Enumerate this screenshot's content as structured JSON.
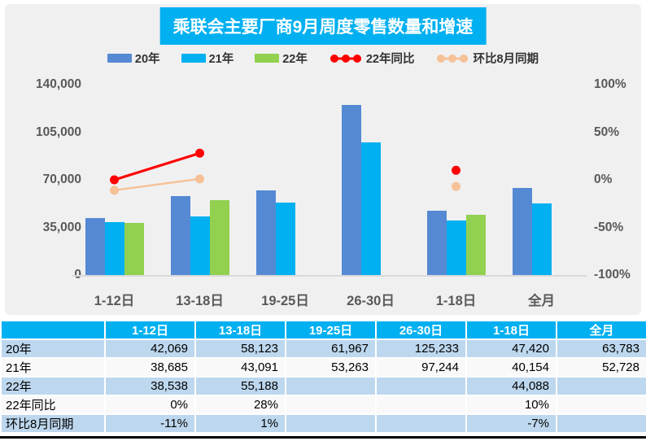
{
  "chart": {
    "title": "乘联会主要厂商9月周度零售数量和增速"
  },
  "chart_data": {
    "type": "bar",
    "subtype": "clustered bars with percent line overlay (combo)",
    "title": "乘联会主要厂商9月周度零售数量和增速",
    "categories": [
      "1-12日",
      "13-18日",
      "19-25日",
      "26-30日",
      "1-18日",
      "全月"
    ],
    "series": [
      {
        "name": "20年",
        "kind": "bar",
        "color": "#5589D3",
        "values": [
          42069,
          58123,
          61967,
          125233,
          47420,
          63783
        ]
      },
      {
        "name": "21年",
        "kind": "bar",
        "color": "#00B0F0",
        "values": [
          38685,
          43091,
          53263,
          97244,
          40154,
          52728
        ]
      },
      {
        "name": "22年",
        "kind": "bar",
        "color": "#92D050",
        "values": [
          38538,
          55188,
          null,
          null,
          44088,
          null
        ]
      },
      {
        "name": "22年同比",
        "kind": "line",
        "color": "#FF0000",
        "axis": "right",
        "values": [
          0,
          28,
          null,
          null,
          10,
          null
        ]
      },
      {
        "name": "环比8月同期",
        "kind": "line",
        "color": "#F6C196",
        "axis": "right",
        "values": [
          -11,
          1,
          null,
          null,
          -7,
          null
        ]
      }
    ],
    "left_axis": {
      "ticks": [
        "140,000",
        "105,000",
        "70,000",
        "35,000",
        "0"
      ],
      "tick_values": [
        140000,
        105000,
        70000,
        35000,
        0
      ],
      "min": 0,
      "max": 140000
    },
    "right_axis": {
      "ticks": [
        "100%",
        "50%",
        "0%",
        "-50%",
        "-100%"
      ],
      "tick_values": [
        100,
        50,
        0,
        -50,
        -100
      ],
      "min": -100,
      "max": 100
    },
    "grid": false,
    "legend_position": "top"
  },
  "table": {
    "header": [
      "",
      "1-12日",
      "13-18日",
      "19-25日",
      "26-30日",
      "1-18日",
      "全月"
    ],
    "rows": [
      {
        "label": "20年",
        "cells": [
          "42,069",
          "58,123",
          "61,967",
          "125,233",
          "47,420",
          "63,783"
        ]
      },
      {
        "label": "21年",
        "cells": [
          "38,685",
          "43,091",
          "53,263",
          "97,244",
          "40,154",
          "52,728"
        ]
      },
      {
        "label": "22年",
        "cells": [
          "38,538",
          "55,188",
          "",
          "",
          "44,088",
          ""
        ]
      },
      {
        "label": "22年同比",
        "cells": [
          "0%",
          "28%",
          "",
          "",
          "10%",
          ""
        ]
      },
      {
        "label": "环比8月同期",
        "cells": [
          "-11%",
          "1%",
          "",
          "",
          "-7%",
          ""
        ]
      }
    ]
  },
  "colors": {
    "title_bg": "#00B0F0",
    "header_bg": "#00B0F0",
    "stripe_row_bg": "#BDD7EE",
    "panel_bg": "#F0F0F1",
    "axis_text": "#595959",
    "bar_blue": "#5589D3",
    "bar_cyan": "#00B0F0",
    "bar_green": "#92D050",
    "line_red": "#FF0000",
    "line_peach": "#F6C196"
  }
}
